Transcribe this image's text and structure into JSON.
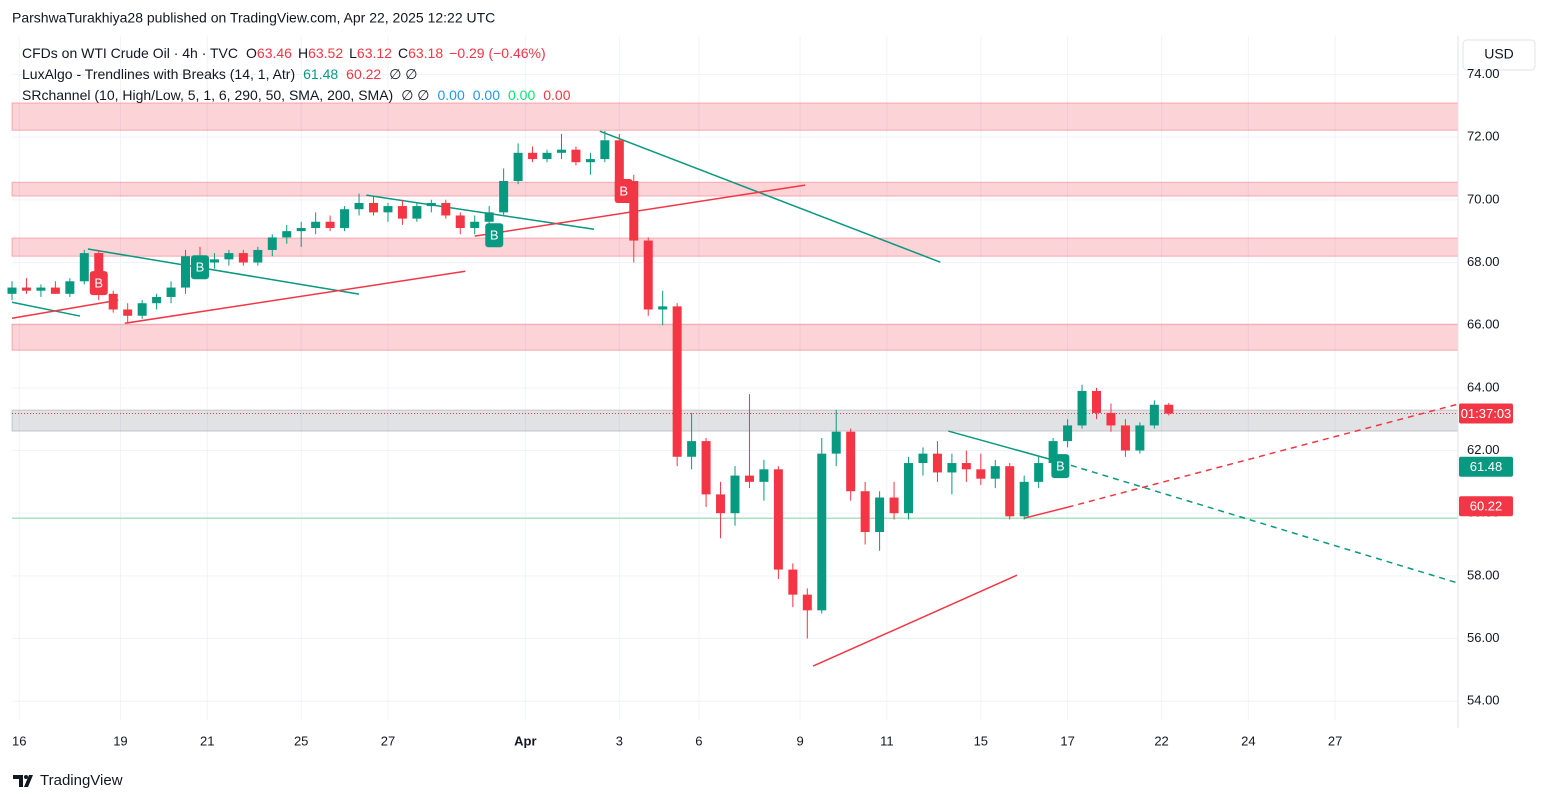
{
  "header": {
    "text": "ParshwaTurakhiya28 published on TradingView.com, Apr 22, 2025 12:22 UTC"
  },
  "brand": "TradingView",
  "chart_data": {
    "type": "candlestick",
    "symbol": "CFDs on WTI Crude Oil · 4h · TVC",
    "ohlc": [
      {
        "label": "O",
        "value": 63.46
      },
      {
        "label": "H",
        "value": 63.52
      },
      {
        "label": "L",
        "value": 63.12
      },
      {
        "label": "C",
        "value": 63.18
      }
    ],
    "change": "−0.29 (−0.46%)",
    "indicators": [
      {
        "name": "LuxAlgo - Trendlines with Breaks (14, 1, Atr)",
        "extra": "∅ ∅",
        "values": [
          61.48,
          60.22
        ],
        "colors": [
          "#089981",
          "#f23645"
        ]
      },
      {
        "name": "SRchannel (10, High/Low, 5, 1, 6, 290, 50, SMA, 200, SMA)",
        "extra": "∅ ∅",
        "values": [
          {
            "value": 0,
            "label": "0.00"
          },
          {
            "value": 0,
            "label": "0.00"
          },
          {
            "value": 0,
            "label": "0.00"
          },
          {
            "value": 0,
            "label": "0.00"
          }
        ],
        "colors": [
          "#2196f3",
          "#2196f3",
          "#00e676",
          "#f23645"
        ]
      }
    ],
    "currency": "USD",
    "up_color": "#089981",
    "down_color": "#f23645",
    "x": [
      0,
      2,
      4,
      6,
      8,
      10,
      12,
      14,
      16,
      18,
      20,
      22,
      24,
      26,
      28,
      30,
      32,
      34,
      36,
      38,
      40,
      42,
      44,
      46,
      48,
      50,
      52,
      54,
      56,
      58,
      60,
      62,
      64,
      66,
      68,
      70,
      72,
      74,
      76,
      78,
      80,
      82,
      84,
      86,
      88,
      90,
      92,
      94,
      96,
      98,
      100,
      102,
      104,
      106,
      108,
      110,
      112,
      114,
      116,
      118,
      120,
      122,
      124,
      126,
      128,
      130,
      132,
      134,
      136,
      138,
      140,
      142,
      144,
      146,
      148,
      150,
      152,
      154,
      156,
      158,
      160
    ],
    "open": [
      67.0,
      67.2,
      67.1,
      67.2,
      67.0,
      67.4,
      68.3,
      67.0,
      66.5,
      66.3,
      66.7,
      66.9,
      67.2,
      68.2,
      68.0,
      68.1,
      68.3,
      68.0,
      68.4,
      68.8,
      69.0,
      69.1,
      69.3,
      69.1,
      69.7,
      69.9,
      69.6,
      69.8,
      69.4,
      69.8,
      69.9,
      69.5,
      69.1,
      69.3,
      69.6,
      70.6,
      71.5,
      71.3,
      71.5,
      71.6,
      71.2,
      71.3,
      71.9,
      70.6,
      68.7,
      66.5,
      66.6,
      61.8,
      62.3,
      60.6,
      60.0,
      61.2,
      61.0,
      61.4,
      58.2,
      57.4,
      56.9,
      61.9,
      62.6,
      60.7,
      59.4,
      60.5,
      60.0,
      61.6,
      61.9,
      61.3,
      61.6,
      61.4,
      61.1,
      61.5,
      59.9,
      61.0,
      61.6,
      62.3,
      62.8,
      63.9,
      63.2,
      62.8,
      62.0,
      62.8,
      63.46
    ],
    "high": [
      67.4,
      67.5,
      67.3,
      67.4,
      67.5,
      68.4,
      68.4,
      67.1,
      66.7,
      66.8,
      67.0,
      67.4,
      68.4,
      68.5,
      68.3,
      68.4,
      68.4,
      68.5,
      68.9,
      69.2,
      69.3,
      69.6,
      69.5,
      69.8,
      70.2,
      70.1,
      69.9,
      70.0,
      69.9,
      70.0,
      70.0,
      69.6,
      69.5,
      69.8,
      71.0,
      71.8,
      71.7,
      71.6,
      72.1,
      71.7,
      71.5,
      72.2,
      72.1,
      70.8,
      68.8,
      67.1,
      66.7,
      63.2,
      62.4,
      61.0,
      61.5,
      63.8,
      61.7,
      61.5,
      58.4,
      57.6,
      62.4,
      63.3,
      62.7,
      61.0,
      60.7,
      61.0,
      61.8,
      62.1,
      62.3,
      61.9,
      62.0,
      61.9,
      61.7,
      61.6,
      61.2,
      61.8,
      62.4,
      63.0,
      64.1,
      64.0,
      63.5,
      63.0,
      62.9,
      63.6,
      63.52
    ],
    "low": [
      66.8,
      67.0,
      66.9,
      67.0,
      66.9,
      67.3,
      66.8,
      66.4,
      66.1,
      66.2,
      66.5,
      66.7,
      67.0,
      67.8,
      67.8,
      67.9,
      67.9,
      67.9,
      68.2,
      68.6,
      68.5,
      68.9,
      69.0,
      69.0,
      69.5,
      69.5,
      69.3,
      69.2,
      69.3,
      69.6,
      69.4,
      68.9,
      68.9,
      69.1,
      69.5,
      70.5,
      71.2,
      71.2,
      71.3,
      71.1,
      70.8,
      71.2,
      70.5,
      68.0,
      66.3,
      66.0,
      61.5,
      61.4,
      60.2,
      59.2,
      59.6,
      60.8,
      60.4,
      57.9,
      57.0,
      56.0,
      56.8,
      61.5,
      60.4,
      59.0,
      58.8,
      59.8,
      59.8,
      61.2,
      61.0,
      60.6,
      61.0,
      60.9,
      60.8,
      59.8,
      59.8,
      60.8,
      61.5,
      62.1,
      62.7,
      63.0,
      62.6,
      61.8,
      61.9,
      62.7,
      63.12
    ],
    "close": [
      67.2,
      67.1,
      67.2,
      67.0,
      67.4,
      68.3,
      67.0,
      66.5,
      66.3,
      66.7,
      66.9,
      67.2,
      68.2,
      68.0,
      68.1,
      68.3,
      68.0,
      68.4,
      68.8,
      69.0,
      69.1,
      69.3,
      69.1,
      69.7,
      69.9,
      69.6,
      69.8,
      69.4,
      69.8,
      69.9,
      69.5,
      69.1,
      69.3,
      69.6,
      70.6,
      71.5,
      71.3,
      71.5,
      71.6,
      71.2,
      71.3,
      71.9,
      70.6,
      68.7,
      66.5,
      66.6,
      61.8,
      62.3,
      60.6,
      60.0,
      61.2,
      61.0,
      61.4,
      58.2,
      57.4,
      56.9,
      61.9,
      62.6,
      60.7,
      59.4,
      60.5,
      60.0,
      61.6,
      61.9,
      61.3,
      61.6,
      61.4,
      61.1,
      61.5,
      59.9,
      61.0,
      61.6,
      62.3,
      62.8,
      63.9,
      63.2,
      62.8,
      62.0,
      62.8,
      63.46,
      63.18
    ],
    "zones": [
      [
        72.22,
        73.09,
        "#f23645"
      ],
      [
        70.12,
        70.56,
        "#f23645"
      ],
      [
        68.2,
        68.78,
        "#f23645"
      ],
      [
        65.2,
        66.03,
        "#f23645"
      ],
      [
        62.62,
        63.29,
        "#787b86"
      ]
    ],
    "levels": [
      {
        "value": 59.84,
        "color": "#a5e6bf"
      }
    ],
    "trendlines": [
      {
        "x": [
          10.5,
          48
        ],
        "y": [
          68.43,
          66.99
        ],
        "color": "#089981",
        "dashed": false
      },
      {
        "x": [
          0,
          9.4
        ],
        "y": [
          66.73,
          66.29
        ],
        "color": "#089981",
        "dashed": false
      },
      {
        "x": [
          49,
          80.5
        ],
        "y": [
          70.15,
          69.06
        ],
        "color": "#089981",
        "dashed": false
      },
      {
        "x": [
          81.3,
          128.4
        ],
        "y": [
          72.19,
          68.01
        ],
        "color": "#089981",
        "dashed": false
      },
      {
        "x": [
          129.5,
          145
        ],
        "y": [
          62.62,
          61.63
        ],
        "color": "#089981",
        "dashed": false
      },
      {
        "x": [
          145,
          200
        ],
        "y": [
          61.63,
          57.77
        ],
        "color": "#089981",
        "dashed": true
      },
      {
        "x": [
          0,
          14.7
        ],
        "y": [
          66.22,
          66.8
        ],
        "color": "#f23645",
        "dashed": false
      },
      {
        "x": [
          15.6,
          62.7
        ],
        "y": [
          66.06,
          67.72
        ],
        "color": "#f23645",
        "dashed": false
      },
      {
        "x": [
          64,
          109.7
        ],
        "y": [
          68.84,
          70.47
        ],
        "color": "#f23645",
        "dashed": false
      },
      {
        "x": [
          110.8,
          139
        ],
        "y": [
          55.12,
          58.02
        ],
        "color": "#f23645",
        "dashed": false
      },
      {
        "x": [
          140,
          146
        ],
        "y": [
          59.84,
          60.19
        ],
        "color": "#f23645",
        "dashed": false
      },
      {
        "x": [
          146,
          200
        ],
        "y": [
          60.19,
          63.48
        ],
        "color": "#f23645",
        "dashed": true
      }
    ],
    "signals": [
      {
        "x": 12,
        "y": 67.34,
        "label": "B",
        "color": "#f23645"
      },
      {
        "x": 84.6,
        "y": 70.28,
        "label": "B",
        "color": "#f23645"
      },
      {
        "x": 26,
        "y": 67.85,
        "label": "B",
        "color": "#089981"
      },
      {
        "x": 66.7,
        "y": 68.87,
        "label": "B",
        "color": "#089981"
      },
      {
        "x": 145,
        "y": 61.5,
        "label": "B",
        "color": "#089981"
      }
    ],
    "countdown": {
      "value": 63.18,
      "label": "01:37:03",
      "color": "#f23645"
    },
    "xlim": [
      0,
      200
    ],
    "ylim": [
      53.4,
      75.1
    ],
    "xticks": [
      {
        "value": 1,
        "label": "16"
      },
      {
        "value": 15,
        "label": "19"
      },
      {
        "value": 27,
        "label": "21"
      },
      {
        "value": 40,
        "label": "25"
      },
      {
        "value": 52,
        "label": "27"
      },
      {
        "value": 71,
        "label": "Apr"
      },
      {
        "value": 84,
        "label": "3"
      },
      {
        "value": 95,
        "label": "6"
      },
      {
        "value": 109,
        "label": "9"
      },
      {
        "value": 121,
        "label": "11"
      },
      {
        "value": 134,
        "label": "15"
      },
      {
        "value": 146,
        "label": "17"
      },
      {
        "value": 159,
        "label": "22"
      },
      {
        "value": 171,
        "label": "24"
      },
      {
        "value": 183,
        "label": "27"
      }
    ],
    "yticks": [
      {
        "value": 54,
        "label": "54.00"
      },
      {
        "value": 56,
        "label": "56.00"
      },
      {
        "value": 58,
        "label": "58.00"
      },
      {
        "value": 60,
        "label": "60.00"
      },
      {
        "value": 62,
        "label": "62.00"
      },
      {
        "value": 64,
        "label": "64.00"
      },
      {
        "value": 66,
        "label": "66.00"
      },
      {
        "value": 68,
        "label": "68.00"
      },
      {
        "value": 70,
        "label": "70.00"
      },
      {
        "value": 72,
        "label": "72.00"
      },
      {
        "value": 74,
        "label": "74.00"
      }
    ],
    "grid": true
  }
}
